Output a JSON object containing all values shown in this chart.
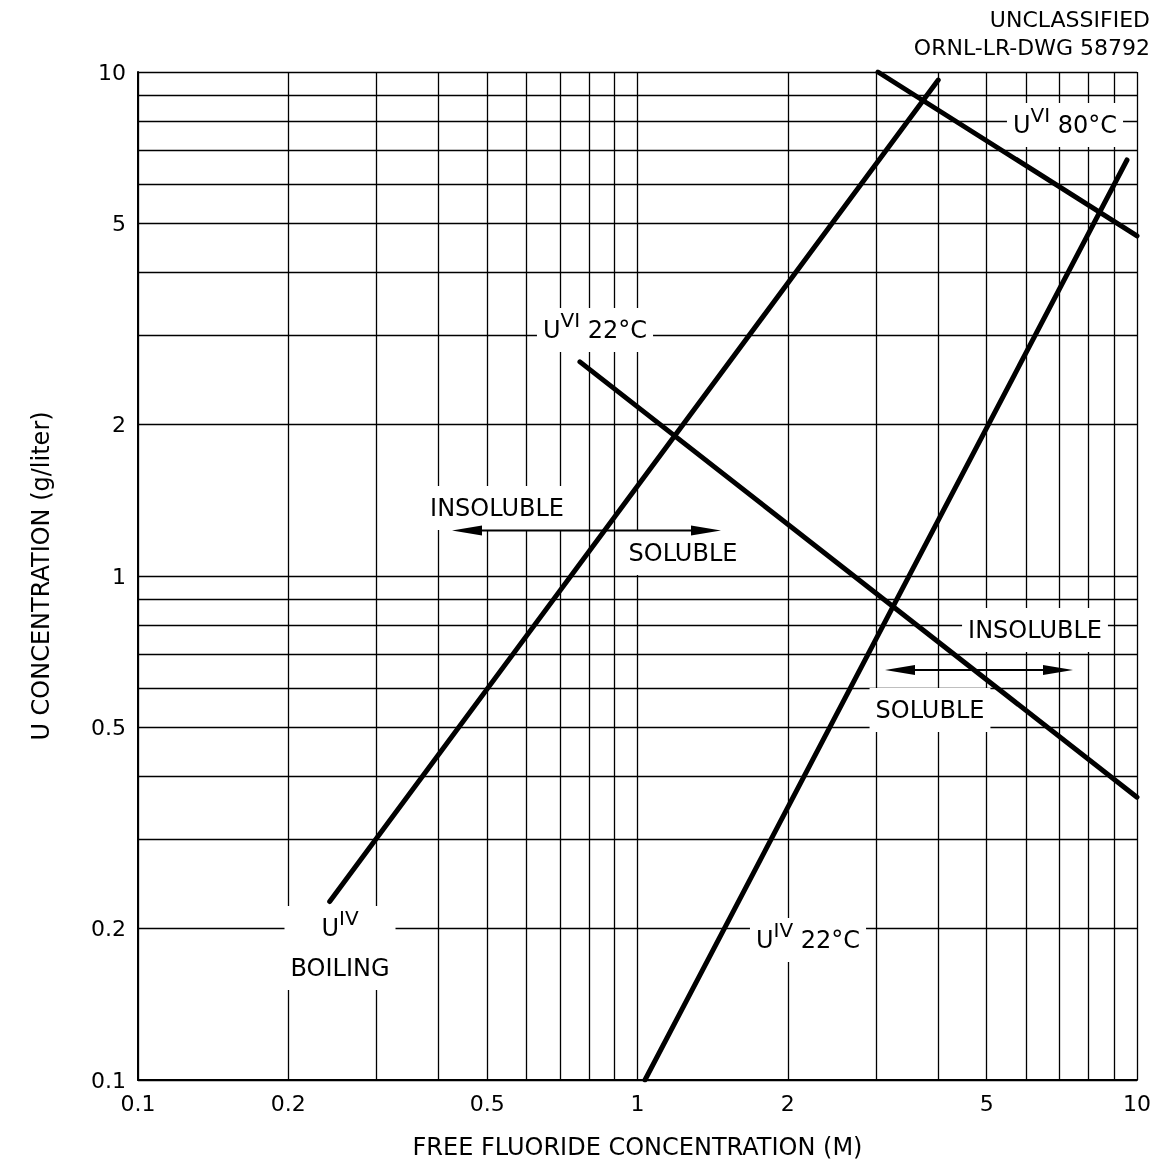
{
  "chart_data": {
    "type": "line",
    "xlabel": "FREE FLUORIDE CONCENTRATION (M)",
    "ylabel": "U CONCENTRATION (g/liter)",
    "log": "xy",
    "grid": true,
    "marker": "none",
    "line_style": "solid",
    "xlim": [
      0.1,
      10
    ],
    "ylim": [
      0.1,
      10
    ],
    "xticks": [
      0.1,
      0.2,
      {
        "value": 0.3,
        "label": null
      },
      {
        "value": 0.4,
        "label": null
      },
      0.5,
      {
        "value": 0.6,
        "label": null
      },
      {
        "value": 0.7,
        "label": null
      },
      {
        "value": 0.8,
        "label": null
      },
      {
        "value": 0.9,
        "label": null
      },
      1,
      2,
      {
        "value": 3,
        "label": null
      },
      {
        "value": 4,
        "label": null
      },
      5,
      {
        "value": 6,
        "label": null
      },
      {
        "value": 7,
        "label": null
      },
      {
        "value": 8,
        "label": null
      },
      {
        "value": 9,
        "label": null
      },
      10
    ],
    "yticks": [
      0.1,
      0.2,
      {
        "value": 0.3,
        "label": null
      },
      {
        "value": 0.4,
        "label": null
      },
      0.5,
      {
        "value": 0.6,
        "label": null
      },
      {
        "value": 0.7,
        "label": null
      },
      {
        "value": 0.8,
        "label": null
      },
      {
        "value": 0.9,
        "label": null
      },
      1,
      2,
      {
        "value": 3,
        "label": null
      },
      {
        "value": 4,
        "label": null
      },
      5,
      {
        "value": 6,
        "label": null
      },
      {
        "value": 7,
        "label": null
      },
      {
        "value": 8,
        "label": null
      },
      {
        "value": 9,
        "label": null
      },
      10
    ],
    "series": [
      {
        "name": "U$^{IV}$\nBOILING",
        "color": "#000000",
        "x": [
          0.242,
          4.0
        ],
        "values": [
          0.226,
          9.64
        ]
      },
      {
        "name": "U$^{IV}$ 22°C",
        "color": "#000000",
        "x": [
          1.035,
          9.55
        ],
        "values": [
          0.1,
          6.69
        ]
      },
      {
        "name": "U$^{VI}$ 22°C",
        "color": "#000000",
        "x": [
          0.767,
          10
        ],
        "values": [
          2.66,
          0.364
        ]
      },
      {
        "name": "U$^{VI}$ 80°C",
        "color": "#000000",
        "x": [
          3.03,
          10
        ],
        "values": [
          10,
          4.73
        ]
      }
    ],
    "annotations": [
      "UNCLASSIFIED",
      "ORNL-LR-DWG 58792",
      "INSOLUBLE",
      "SOLUBLE",
      "INSOLUBLE",
      "SOLUBLE"
    ]
  }
}
